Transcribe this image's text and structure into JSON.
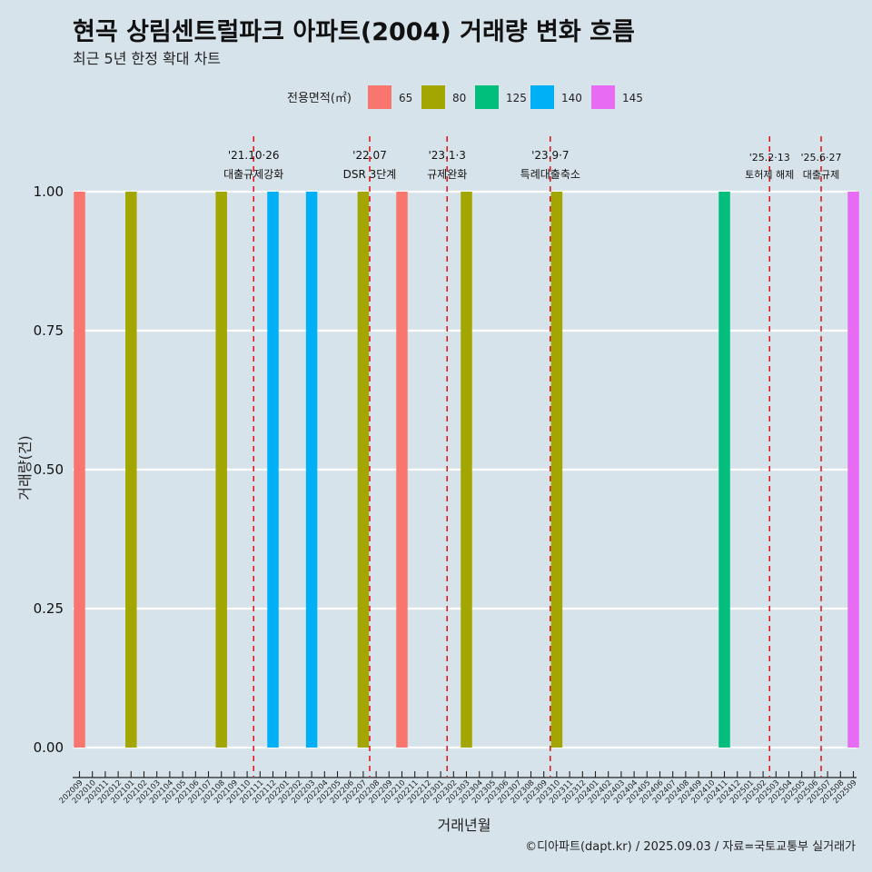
{
  "chart_data": {
    "type": "bar",
    "title": "현곡 상림센트럴파크 아파트(2004) 거래량 변화 흐름",
    "subtitle": "최근 5년 한정 확대 차트",
    "xlabel": "거래년월",
    "ylabel": "거래량(건)",
    "ylim": [
      0,
      1
    ],
    "yticks": [
      "0.00",
      "0.25",
      "0.50",
      "0.75",
      "1.00"
    ],
    "grid": true,
    "legend": {
      "title": "전용면적(㎡)",
      "position": "top",
      "entries": [
        {
          "label": "65",
          "color": "#F8766D"
        },
        {
          "label": "80",
          "color": "#A3A500"
        },
        {
          "label": "125",
          "color": "#00BF7D"
        },
        {
          "label": "140",
          "color": "#00B0F6"
        },
        {
          "label": "145",
          "color": "#E76BF3"
        }
      ]
    },
    "categories": [
      "202009",
      "202010",
      "202011",
      "202012",
      "202101",
      "202102",
      "202103",
      "202104",
      "202105",
      "202106",
      "202107",
      "202108",
      "202109",
      "202110",
      "202111",
      "202112",
      "202201",
      "202202",
      "202203",
      "202204",
      "202205",
      "202206",
      "202207",
      "202208",
      "202209",
      "202210",
      "202211",
      "202212",
      "202301",
      "202302",
      "202303",
      "202304",
      "202305",
      "202306",
      "202307",
      "202308",
      "202309",
      "202310",
      "202311",
      "202312",
      "202401",
      "202402",
      "202403",
      "202404",
      "202405",
      "202406",
      "202407",
      "202408",
      "202409",
      "202410",
      "202411",
      "202412",
      "202501",
      "202502",
      "202503",
      "202504",
      "202505",
      "202506",
      "202507",
      "202508",
      "202509"
    ],
    "bars": [
      {
        "x": "202009",
        "area": "65",
        "value": 1
      },
      {
        "x": "202101",
        "area": "80",
        "value": 1
      },
      {
        "x": "202108",
        "area": "80",
        "value": 1
      },
      {
        "x": "202112",
        "area": "140",
        "value": 1
      },
      {
        "x": "202203",
        "area": "140",
        "value": 1
      },
      {
        "x": "202207",
        "area": "80",
        "value": 1
      },
      {
        "x": "202210",
        "area": "65",
        "value": 1
      },
      {
        "x": "202303",
        "area": "80",
        "value": 1
      },
      {
        "x": "202310",
        "area": "80",
        "value": 1
      },
      {
        "x": "202411",
        "area": "125",
        "value": 1
      },
      {
        "x": "202509",
        "area": "145",
        "value": 1
      }
    ],
    "annotations": [
      {
        "date": "'21.10·26",
        "label": "대출규제강화",
        "pos": 13.5
      },
      {
        "date": "'22.07",
        "label": "DSR 3단계",
        "pos": 22.5
      },
      {
        "date": "'23.1·3",
        "label": "규제완화",
        "pos": 28.5
      },
      {
        "date": "'23.9·7",
        "label": "특례대출축소",
        "pos": 36.5
      },
      {
        "date": "'25.2·13",
        "label": "토허제 해제",
        "pos": 53.5
      },
      {
        "date": "'25.6·27",
        "label": "대출규제",
        "pos": 57.5
      }
    ],
    "annotation_color": "#e00000"
  },
  "caption": "©디아파트(dapt.kr) / 2025.09.03 / 자료=국토교통부 실거래가"
}
